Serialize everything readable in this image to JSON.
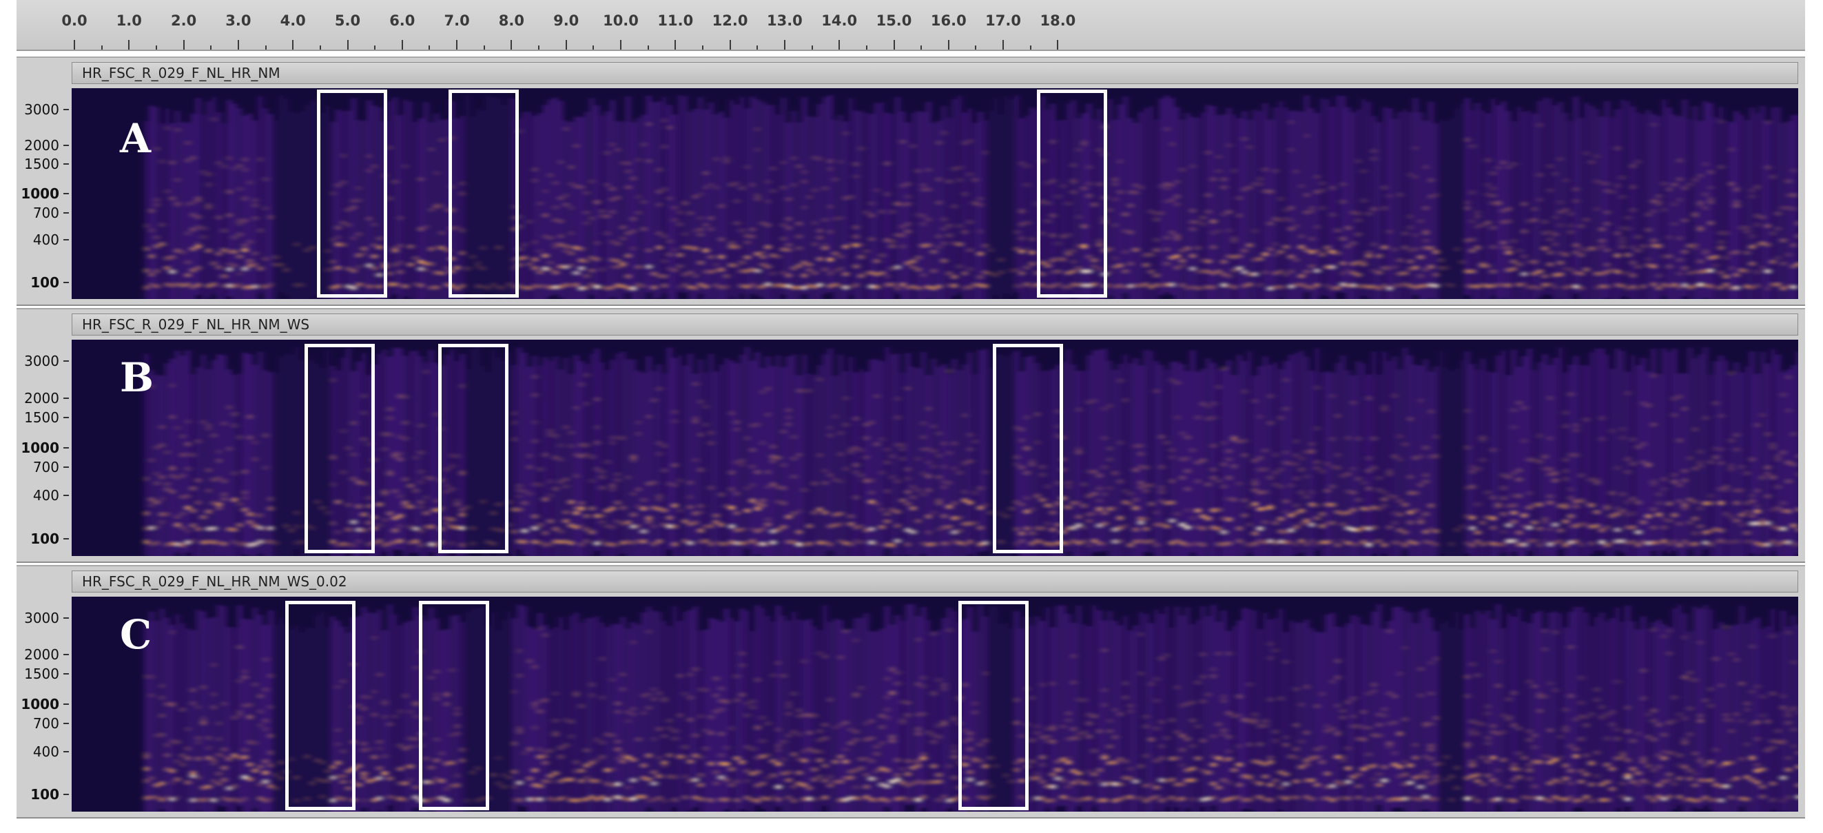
{
  "timeline": {
    "labels": [
      "0.0",
      "1.0",
      "2.0",
      "3.0",
      "4.0",
      "5.0",
      "6.0",
      "7.0",
      "8.0",
      "9.0",
      "10.0",
      "11.0",
      "12.0",
      "13.0",
      "14.0",
      "15.0",
      "16.0",
      "17.0",
      "18.0"
    ]
  },
  "frequency_axis": {
    "labels": [
      "3000",
      "2000",
      "1500",
      "1000",
      "700",
      "400",
      "100"
    ]
  },
  "tracks": [
    {
      "name": "HR_FSC_R_029_F_NL_HR_NM",
      "letter": "A"
    },
    {
      "name": "HR_FSC_R_029_F_NL_HR_NM_WS",
      "letter": "B"
    },
    {
      "name": "HR_FSC_R_029_F_NL_HR_NM_WS_0.02",
      "letter": "C"
    }
  ],
  "colors": {
    "spectrogram_low": "#140a3a",
    "spectrogram_mid": "#8a2be2",
    "spectrogram_high": "#ffb347",
    "spectrogram_peak": "#fff2c8",
    "highlight_box": "#ffffff"
  }
}
